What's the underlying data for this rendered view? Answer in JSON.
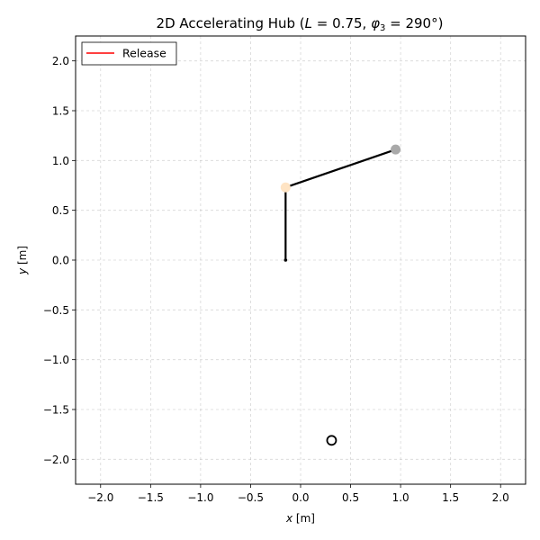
{
  "chart_data": {
    "type": "scatter",
    "title": {
      "main": "2D Accelerating Hub (",
      "L_sym": "L",
      "L_val": " = 0.75, ",
      "phi_sym": "φ",
      "phi_sub": "3",
      "phi_val": " = 290°)"
    },
    "xlabel": {
      "var": "x",
      "unit": " [m]"
    },
    "ylabel": {
      "var": "y",
      "unit": " [m]"
    },
    "xlim": [
      -2.25,
      2.25
    ],
    "ylim": [
      -2.25,
      2.25
    ],
    "xticks": [
      -2.0,
      -1.5,
      -1.0,
      -0.5,
      0.0,
      0.5,
      1.0,
      1.5,
      2.0
    ],
    "yticks": [
      -2.0,
      -1.5,
      -1.0,
      -0.5,
      0.0,
      0.5,
      1.0,
      1.5,
      2.0
    ],
    "xtick_labels": [
      "−2.0",
      "−1.5",
      "−1.0",
      "−0.5",
      "0.0",
      "0.5",
      "1.0",
      "1.5",
      "2.0"
    ],
    "ytick_labels": [
      "−2.0",
      "−1.5",
      "−1.0",
      "−0.5",
      "0.0",
      "0.5",
      "1.0",
      "1.5",
      "2.0"
    ],
    "grid": true,
    "legend": {
      "placement": "top-left",
      "entries": [
        {
          "label": "Release",
          "color": "#ff0000"
        }
      ]
    },
    "segments": [
      {
        "from": [
          -0.15,
          0.0
        ],
        "to": [
          -0.15,
          0.73
        ],
        "color": "#000000"
      },
      {
        "from": [
          -0.15,
          0.73
        ],
        "to": [
          0.95,
          1.11
        ],
        "color": "#000000"
      }
    ],
    "points": [
      {
        "name": "hub-point",
        "x": -0.15,
        "y": 0.0,
        "color": "#000000",
        "style": "small-dot"
      },
      {
        "name": "joint-point",
        "x": -0.15,
        "y": 0.73,
        "color": "#ffe4c4",
        "style": "filled"
      },
      {
        "name": "tip-point",
        "x": 0.95,
        "y": 1.11,
        "color": "#a9a9a9",
        "style": "filled"
      },
      {
        "name": "target-point",
        "x": 0.31,
        "y": -1.81,
        "color": "#000000",
        "style": "hollow"
      }
    ]
  }
}
